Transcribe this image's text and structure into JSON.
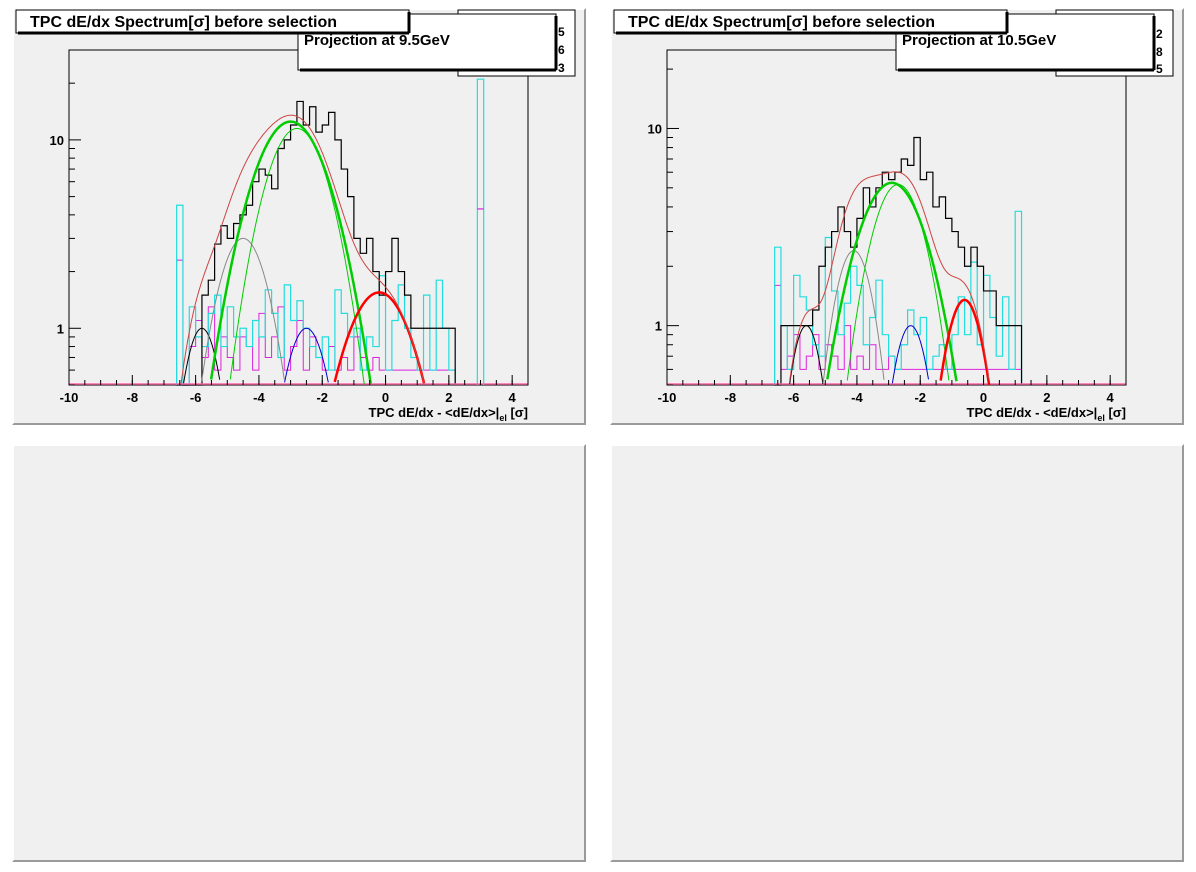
{
  "canvas": {
    "pads": [
      {
        "title": "TPC dE/dx Spectrum[σ] before selection",
        "projection": "Projection at 9.5GeV",
        "stats_digits": [
          "5",
          "6",
          "3"
        ],
        "chart_data": {
          "type": "line",
          "xlabel_main": "TPC dE/dx - <dE/dx>|",
          "xlabel_sub": "el",
          "xlabel_end": " [σ]",
          "ylabel": "",
          "y_log": true,
          "xlim": [
            -10,
            4.5
          ],
          "ylim": [
            0.5,
            30
          ],
          "x_ticks": [
            -10,
            -8,
            -6,
            -4,
            -2,
            0,
            2,
            4
          ],
          "y_ticks": [
            {
              "v": 1,
              "label": "1"
            },
            {
              "v": 10,
              "label": "10"
            }
          ],
          "hist_colors": {
            "total": "#000000",
            "cyan": "#22dddd",
            "magenta": "#dd22dd"
          },
          "hist": {
            "bin_start": -6.6,
            "bin_width": 0.2,
            "total": [
              0,
              0,
              0,
              0,
              1.5,
              1.8,
              2.8,
              3.5,
              3,
              3.6,
              4,
              4.5,
              6,
              7,
              6.5,
              5.5,
              9,
              10,
              12,
              16,
              12,
              15,
              11,
              12,
              14,
              10,
              7,
              5,
              3,
              2.5,
              3,
              2,
              1.5,
              2,
              3,
              2,
              1.5,
              1,
              1,
              1,
              1,
              1,
              1,
              1
            ],
            "cyan": [
              4.5,
              0,
              1.3,
              0.9,
              0.8,
              1.2,
              1.5,
              0.8,
              1.3,
              0.9,
              1,
              0.8,
              1.1,
              0.9,
              1.6,
              1.2,
              0.7,
              1.7,
              1.1,
              1.4,
              1,
              0.8,
              0.7,
              0.9,
              0.6,
              1.6,
              1.2,
              0.9,
              1,
              0.6,
              0.9,
              0.8,
              1.9,
              0.6,
              1.1,
              1.7,
              1,
              0.7,
              0.6,
              1.5,
              0.6,
              1.8,
              1,
              0.6
            ],
            "magenta": [
              2.3,
              0,
              0.8,
              1.1,
              0.7,
              1.3,
              0.6,
              0.9,
              0.7,
              0.6,
              0.9,
              0.8,
              0.6,
              1.2,
              0.7,
              0.9,
              1.3,
              0.6,
              0.8,
              1.1,
              0.6,
              0.9,
              0.7,
              0.6,
              0.8,
              0.6,
              0.7,
              0.6,
              0.9,
              0.7,
              0.6,
              0.7,
              0.6,
              0.6,
              0.6,
              0.6,
              0.6,
              0.6,
              0.6,
              0.6,
              0.6,
              0.6,
              0.6,
              0.6
            ]
          },
          "extra_bins": [
            {
              "x": 2.9,
              "w": 0.2,
              "cyan": 21,
              "magenta": 4.3
            }
          ],
          "components": [
            {
              "color": "#000000",
              "width": 1,
              "amp": 1.0,
              "mean": -5.8,
              "sigma": 0.5
            },
            {
              "color": "#888888",
              "width": 1,
              "amp": 3.0,
              "mean": -4.5,
              "sigma": 0.7
            },
            {
              "color": "#00cc00",
              "width": 1,
              "amp": 11.5,
              "mean": -2.8,
              "sigma": 0.85
            },
            {
              "color": "#00cc00",
              "width": 2.5,
              "amp": 12.5,
              "mean": -3.0,
              "sigma": 1.0
            },
            {
              "color": "#0000cc",
              "width": 1,
              "amp": 1.0,
              "mean": -2.5,
              "sigma": 0.6
            },
            {
              "color": "#ff0000",
              "width": 2.5,
              "amp": 1.55,
              "mean": -0.2,
              "sigma": 0.95
            }
          ],
          "sum_color": "#cc4444"
        }
      },
      {
        "title": "TPC dE/dx Spectrum[σ] before selection",
        "projection": "Projection at 10.5GeV",
        "stats_digits": [
          "2",
          "8",
          "5"
        ],
        "chart_data": {
          "type": "line",
          "xlabel_main": "TPC dE/dx - <dE/dx>|",
          "xlabel_sub": "el",
          "xlabel_end": " [σ]",
          "ylabel": "",
          "y_log": true,
          "xlim": [
            -10,
            4.5
          ],
          "ylim": [
            0.5,
            25
          ],
          "x_ticks": [
            -10,
            -8,
            -6,
            -4,
            -2,
            0,
            2,
            4
          ],
          "y_ticks": [
            {
              "v": 1,
              "label": "1"
            },
            {
              "v": 10,
              "label": "10"
            }
          ],
          "hist_colors": {
            "total": "#000000",
            "cyan": "#22dddd",
            "magenta": "#dd22dd"
          },
          "hist": {
            "bin_start": -6.6,
            "bin_width": 0.2,
            "total": [
              0,
              1,
              1,
              1,
              1,
              1,
              1.2,
              2,
              2.5,
              3,
              4,
              3,
              2.5,
              3.5,
              5,
              4,
              5,
              6,
              5.5,
              6,
              7,
              6.5,
              9,
              5.5,
              6,
              4,
              4.5,
              3.5,
              3,
              2.5,
              2,
              2.5,
              2,
              1.5,
              1.5,
              1,
              1,
              1,
              1
            ],
            "cyan": [
              2.5,
              1,
              0.6,
              1.8,
              1.4,
              1.2,
              0.8,
              0.7,
              2.8,
              1.5,
              0.9,
              1.3,
              2,
              1.6,
              0.8,
              1.1,
              1.7,
              0.9,
              0.7,
              0.6,
              0.8,
              1.2,
              0.9,
              1.1,
              0.6,
              0.7,
              0.8,
              0.6,
              0.9,
              1.4,
              0.9,
              2.1,
              0.8,
              1.8,
              1.1,
              0.7,
              1.4,
              0.6,
              3.8
            ],
            "magenta": [
              1.6,
              0.6,
              0.7,
              0.9,
              0.6,
              0.7,
              0.9,
              0.6,
              0.8,
              0.7,
              0.6,
              1.0,
              0.6,
              0.7,
              0.6,
              0.8,
              0.6,
              0.6,
              0.7,
              0.6,
              0.6,
              0.6,
              0.6,
              0.6,
              0.6,
              0.6,
              0.6,
              0.6,
              0.6,
              0.6,
              0.6,
              0.6,
              0.6,
              0.6,
              0.6,
              0.6,
              0.6,
              0.6,
              0.6
            ]
          },
          "extra_bins": [],
          "components": [
            {
              "color": "#000000",
              "width": 1,
              "amp": 1.0,
              "mean": -5.6,
              "sigma": 0.45
            },
            {
              "color": "#888888",
              "width": 1,
              "amp": 2.4,
              "mean": -4.1,
              "sigma": 0.55
            },
            {
              "color": "#00cc00",
              "width": 1,
              "amp": 5.2,
              "mean": -2.7,
              "sigma": 0.75
            },
            {
              "color": "#00cc00",
              "width": 2.5,
              "amp": 5.3,
              "mean": -2.9,
              "sigma": 0.95
            },
            {
              "color": "#0000cc",
              "width": 1,
              "amp": 1.0,
              "mean": -2.3,
              "sigma": 0.5
            },
            {
              "color": "#ff0000",
              "width": 2.5,
              "amp": 1.35,
              "mean": -0.6,
              "sigma": 0.55
            }
          ],
          "sum_color": "#cc4444"
        }
      }
    ]
  }
}
